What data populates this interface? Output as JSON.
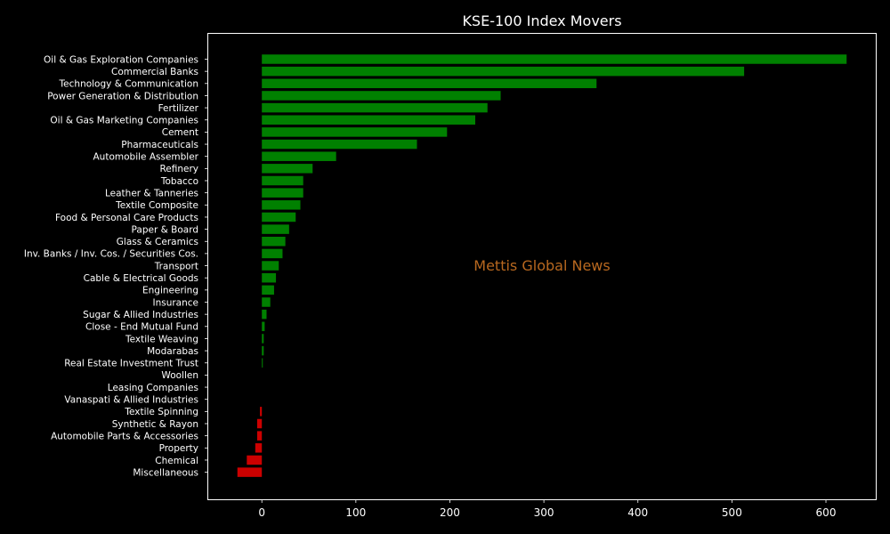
{
  "chart_data": {
    "type": "bar",
    "orientation": "horizontal",
    "title": "KSE-100 Index Movers",
    "xlabel": "",
    "ylabel": "",
    "xlim": [
      -57,
      653
    ],
    "xticks": [
      0,
      100,
      200,
      300,
      400,
      500,
      600
    ],
    "grid": false,
    "categories": [
      "Oil & Gas Exploration Companies",
      "Commercial Banks",
      "Technology & Communication",
      "Power Generation & Distribution",
      "Fertilizer",
      "Oil & Gas Marketing Companies",
      "Cement",
      "Pharmaceuticals",
      "Automobile Assembler",
      "Refinery",
      "Tobacco",
      "Leather & Tanneries",
      "Textile Composite",
      "Food & Personal Care Products",
      "Paper & Board",
      "Glass & Ceramics",
      "Inv. Banks / Inv. Cos. / Securities Cos.",
      "Transport",
      "Cable & Electrical Goods",
      "Engineering",
      "Insurance",
      "Sugar & Allied Industries",
      "Close - End Mutual Fund",
      "Textile Weaving",
      "Modarabas",
      "Real Estate Investment Trust",
      "Woollen",
      "Leasing Companies",
      "Vanaspati & Allied Industries",
      "Textile Spinning",
      "Synthetic & Rayon",
      "Automobile Parts & Accessories",
      "Property",
      "Chemical",
      "Miscellaneous"
    ],
    "values": [
      622,
      513,
      356,
      254,
      240,
      227,
      197,
      165,
      79,
      54,
      44,
      44,
      41,
      36,
      29,
      25,
      22,
      18,
      15,
      13,
      9,
      5,
      3,
      2,
      2,
      1,
      0,
      0,
      0,
      -2,
      -5,
      -5,
      -7,
      -16,
      -26
    ],
    "colors": {
      "positive": "#008000",
      "negative": "#cc0000"
    }
  },
  "watermark": {
    "text": "Mettis Global News",
    "color": "#b8681f"
  },
  "colors": {
    "background": "#000000",
    "axis": "#ffffff",
    "text": "#ffffff"
  }
}
